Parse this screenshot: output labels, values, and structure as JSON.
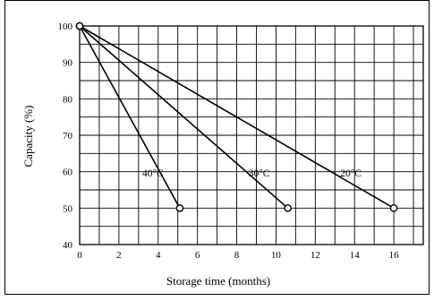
{
  "chart_data": {
    "type": "line",
    "title": "",
    "xlabel": "Storage time (months)",
    "ylabel": "Capacity (%)",
    "xlim": [
      0,
      17.5
    ],
    "ylim": [
      40,
      100
    ],
    "x_ticks": [
      "0",
      "2",
      "4",
      "6",
      "8",
      "10",
      "12",
      "14",
      "16"
    ],
    "y_ticks": [
      "40",
      "50",
      "60",
      "70",
      "80",
      "90",
      "100"
    ],
    "grid": true,
    "series": [
      {
        "name": "40°C",
        "x": [
          0,
          5.1
        ],
        "y": [
          100,
          50
        ]
      },
      {
        "name": "30°C",
        "x": [
          0,
          10.6
        ],
        "y": [
          100,
          50
        ]
      },
      {
        "name": "20°C",
        "x": [
          0,
          16.0
        ],
        "y": [
          100,
          50
        ]
      }
    ]
  }
}
